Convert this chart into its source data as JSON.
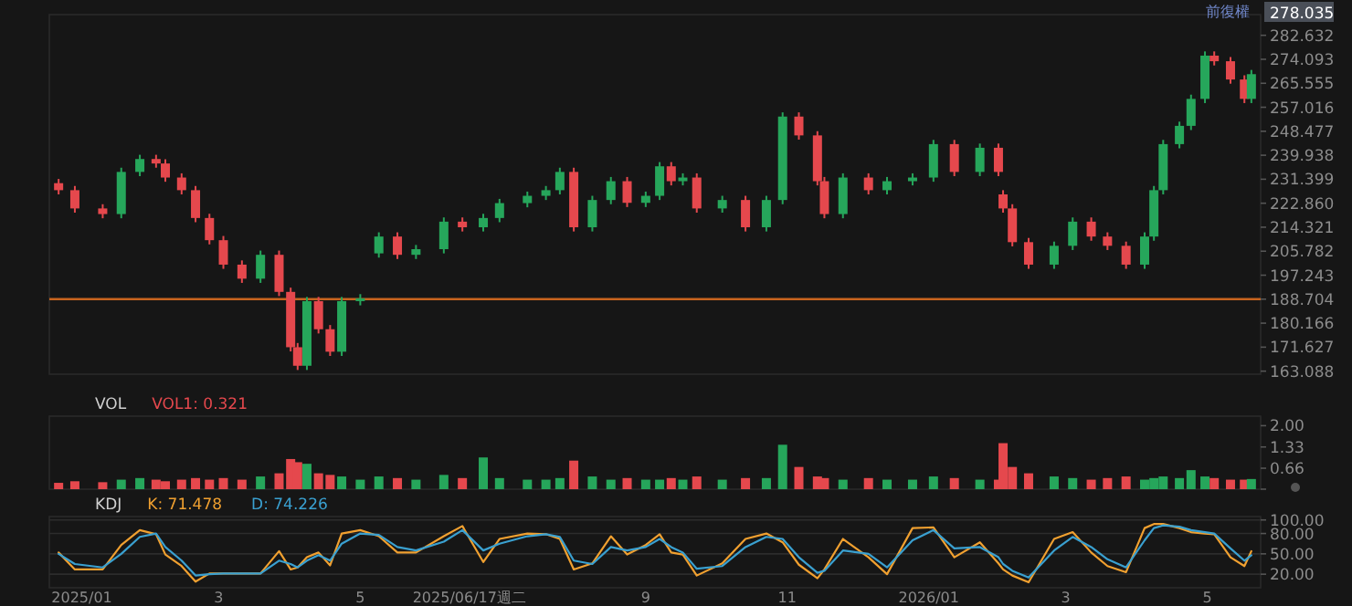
{
  "chart_data": [
    {
      "type": "candlestick",
      "x": [
        "2024-12-22",
        "2024-12-29",
        "2025-01-10",
        "2025-01-18",
        "2025-01-26",
        "2025-02-02",
        "2025-02-06",
        "2025-02-13",
        "2025-02-19",
        "2025-02-25",
        "2025-03-03",
        "2025-03-11",
        "2025-03-19",
        "2025-03-27",
        "2025-04-01",
        "2025-04-04",
        "2025-04-08",
        "2025-04-13",
        "2025-04-18",
        "2025-04-23",
        "2025-05-01",
        "2025-05-09",
        "2025-05-17",
        "2025-05-25",
        "2025-06-06",
        "2025-06-14",
        "2025-06-23",
        "2025-06-30",
        "2025-07-12",
        "2025-07-20",
        "2025-07-26",
        "2025-08-01",
        "2025-08-09",
        "2025-08-17",
        "2025-08-24",
        "2025-09-01",
        "2025-09-07",
        "2025-09-12",
        "2025-09-17",
        "2025-09-23",
        "2025-10-04",
        "2025-10-14",
        "2025-10-23",
        "2025-10-30",
        "2025-11-06",
        "2025-11-14",
        "2025-11-17",
        "2025-11-25",
        "2025-12-06",
        "2025-12-14",
        "2025-12-25",
        "2026-01-03",
        "2026-01-12",
        "2026-01-23",
        "2026-01-31",
        "2026-02-02",
        "2026-02-06",
        "2026-02-13",
        "2026-02-24",
        "2026-03-04",
        "2026-03-12",
        "2026-03-19",
        "2026-03-27",
        "2026-04-04",
        "2026-04-08",
        "2026-04-12",
        "2026-04-19",
        "2026-04-24",
        "2026-04-30",
        "2026-05-04",
        "2026-05-11",
        "2026-05-17",
        "2026-05-20"
      ],
      "ohlc": [
        [
          230,
          231.5,
          226,
          227.5
        ],
        [
          227.5,
          229,
          219.5,
          221
        ],
        [
          221,
          222.5,
          217.5,
          219
        ],
        [
          219,
          235.5,
          217.5,
          234
        ],
        [
          234,
          240.1,
          232.5,
          238.6
        ],
        [
          238.6,
          240.1,
          235.5,
          237
        ],
        [
          237,
          238.5,
          230.5,
          232
        ],
        [
          232,
          233.5,
          226,
          227.5
        ],
        [
          227.5,
          229,
          216.1,
          217.6
        ],
        [
          217.6,
          219.1,
          208.2,
          209.7
        ],
        [
          209.7,
          211.2,
          199.5,
          201
        ],
        [
          201,
          202.5,
          194.5,
          196
        ],
        [
          196,
          206,
          194.5,
          204.5
        ],
        [
          204.5,
          206,
          189.8,
          191.3
        ],
        [
          191.3,
          192.8,
          170.1,
          171.6
        ],
        [
          171.6,
          173.1,
          163.5,
          165
        ],
        [
          165,
          189.5,
          163.5,
          188
        ],
        [
          188,
          189.5,
          176.5,
          178
        ],
        [
          178,
          179.5,
          168.5,
          170
        ],
        [
          170,
          189.5,
          168.5,
          188
        ],
        [
          188,
          190.5,
          186.5,
          189
        ],
        [
          205,
          212.5,
          203.5,
          211
        ],
        [
          211,
          212.5,
          203,
          204.5
        ],
        [
          204.5,
          208,
          203,
          206.5
        ],
        [
          206.5,
          217.8,
          205,
          216.3
        ],
        [
          216.3,
          217.8,
          212.8,
          214.3
        ],
        [
          214.3,
          219.1,
          212.8,
          217.6
        ],
        [
          217.6,
          224.4,
          216.1,
          222.9
        ],
        [
          222.9,
          227,
          221.4,
          225.5
        ],
        [
          225.5,
          229,
          224,
          227.5
        ],
        [
          227.5,
          235.5,
          226,
          234
        ],
        [
          234,
          235.5,
          212.8,
          214.3
        ],
        [
          214.3,
          225.5,
          212.8,
          224
        ],
        [
          224,
          232.2,
          222.5,
          230.7
        ],
        [
          230.7,
          232.2,
          221.5,
          223
        ],
        [
          223,
          227,
          221.5,
          225.5
        ],
        [
          225.5,
          237.5,
          224,
          236
        ],
        [
          236,
          237.5,
          229.2,
          230.7
        ],
        [
          230.7,
          233.5,
          229.2,
          232
        ],
        [
          232,
          233.5,
          219.5,
          221
        ],
        [
          221,
          225.5,
          219.5,
          224
        ],
        [
          224,
          225.5,
          212.8,
          214.3
        ],
        [
          214.3,
          225.5,
          212.8,
          224
        ],
        [
          224,
          255.2,
          222.5,
          253.7
        ],
        [
          253.7,
          255.2,
          245.5,
          247
        ],
        [
          247,
          248.5,
          229.2,
          230.7
        ],
        [
          230.7,
          232.2,
          217.5,
          219
        ],
        [
          219,
          233.5,
          217.5,
          232
        ],
        [
          232,
          233.5,
          226,
          227.5
        ],
        [
          227.5,
          232.2,
          226,
          230.7
        ],
        [
          230.7,
          233.5,
          229.2,
          232
        ],
        [
          232,
          245.4,
          230.5,
          243.9
        ],
        [
          243.9,
          245.4,
          232.5,
          234
        ],
        [
          234,
          244.1,
          232.5,
          242.6
        ],
        [
          242.6,
          244.1,
          232.5,
          234
        ],
        [
          226,
          227.5,
          219.5,
          221
        ],
        [
          221,
          222.5,
          207.5,
          209
        ],
        [
          209,
          210.5,
          199.5,
          201
        ],
        [
          201,
          209.2,
          199.5,
          207.7
        ],
        [
          207.7,
          217.8,
          206.2,
          216.3
        ],
        [
          216.3,
          217.8,
          209.5,
          211
        ],
        [
          211,
          212.5,
          206.2,
          207.7
        ],
        [
          207.7,
          209.2,
          199.5,
          201
        ],
        [
          201,
          212.5,
          199.5,
          211
        ],
        [
          211,
          229,
          209.5,
          227.5
        ],
        [
          227.5,
          245.4,
          226,
          243.9
        ],
        [
          243.9,
          251.9,
          242.4,
          250.4
        ],
        [
          250.4,
          261.5,
          248.9,
          260
        ],
        [
          260,
          276.9,
          258.5,
          275.4
        ],
        [
          275.4,
          276.9,
          271.9,
          273.4
        ],
        [
          273.4,
          274.9,
          265.4,
          266.9
        ],
        [
          266.9,
          268.4,
          258.5,
          260
        ],
        [
          260,
          270.3,
          258.5,
          268.8
        ]
      ],
      "colors": [
        "#e5484d",
        "#e5484d",
        "#e5484d",
        "#26a65b",
        "#26a65b",
        "#e5484d",
        "#e5484d",
        "#e5484d",
        "#e5484d",
        "#e5484d",
        "#e5484d",
        "#e5484d",
        "#26a65b",
        "#e5484d",
        "#e5484d",
        "#e5484d",
        "#26a65b",
        "#e5484d",
        "#e5484d",
        "#26a65b",
        "#26a65b",
        "#26a65b",
        "#e5484d",
        "#26a65b",
        "#26a65b",
        "#e5484d",
        "#26a65b",
        "#26a65b",
        "#26a65b",
        "#26a65b",
        "#26a65b",
        "#e5484d",
        "#26a65b",
        "#26a65b",
        "#e5484d",
        "#26a65b",
        "#26a65b",
        "#e5484d",
        "#26a65b",
        "#e5484d",
        "#26a65b",
        "#e5484d",
        "#26a65b",
        "#26a65b",
        "#e5484d",
        "#e5484d",
        "#e5484d",
        "#26a65b",
        "#e5484d",
        "#26a65b",
        "#26a65b",
        "#26a65b",
        "#e5484d",
        "#26a65b",
        "#e5484d",
        "#e5484d",
        "#e5484d",
        "#e5484d",
        "#26a65b",
        "#26a65b",
        "#e5484d",
        "#e5484d",
        "#e5484d",
        "#26a65b",
        "#26a65b",
        "#26a65b",
        "#26a65b",
        "#26a65b",
        "#26a65b",
        "#e5484d",
        "#e5484d",
        "#e5484d",
        "#26a65b"
      ],
      "xlim": [
        "2024-12-18",
        "2026-05-24"
      ],
      "ylim": [
        162,
        290
      ],
      "yticks": [
        163.088,
        171.627,
        180.166,
        188.704,
        197.243,
        205.782,
        214.321,
        {
          "value": 222.86,
          "label": "222.860"
        },
        231.399,
        239.938,
        248.477,
        257.016,
        265.555,
        274.093,
        282.632
      ],
      "tick_labels": "y",
      "ref_lines": [
        {
          "axis": "y",
          "value": 188.704,
          "color": "#c8641e"
        }
      ],
      "annotations": [
        "前復權",
        "278.035"
      ]
    },
    {
      "type": "bar",
      "title": "VOL",
      "x": [
        "2024-12-22",
        "2024-12-29",
        "2025-01-10",
        "2025-01-18",
        "2025-01-26",
        "2025-02-02",
        "2025-02-06",
        "2025-02-13",
        "2025-02-19",
        "2025-02-25",
        "2025-03-03",
        "2025-03-11",
        "2025-03-19",
        "2025-03-27",
        "2025-04-01",
        "2025-04-04",
        "2025-04-08",
        "2025-04-13",
        "2025-04-18",
        "2025-04-23",
        "2025-05-01",
        "2025-05-09",
        "2025-05-17",
        "2025-05-25",
        "2025-06-06",
        "2025-06-14",
        "2025-06-23",
        "2025-06-30",
        "2025-07-12",
        "2025-07-20",
        "2025-07-26",
        "2025-08-01",
        "2025-08-09",
        "2025-08-17",
        "2025-08-24",
        "2025-09-01",
        "2025-09-07",
        "2025-09-12",
        "2025-09-17",
        "2025-09-23",
        "2025-10-04",
        "2025-10-14",
        "2025-10-23",
        "2025-10-30",
        "2025-11-06",
        "2025-11-14",
        "2025-11-17",
        "2025-11-25",
        "2025-12-06",
        "2025-12-14",
        "2025-12-25",
        "2026-01-03",
        "2026-01-12",
        "2026-01-23",
        "2026-01-31",
        "2026-02-02",
        "2026-02-06",
        "2026-02-13",
        "2026-02-24",
        "2026-03-04",
        "2026-03-12",
        "2026-03-19",
        "2026-03-27",
        "2026-04-04",
        "2026-04-08",
        "2026-04-12",
        "2026-04-19",
        "2026-04-24",
        "2026-04-30",
        "2026-05-04",
        "2026-05-11",
        "2026-05-17",
        "2026-05-20"
      ],
      "series": [
        {
          "name": "VOL1: 0.321",
          "color": "#e5484d",
          "values": [
            0.2,
            0.25,
            0.22,
            0.3,
            0.35,
            0.3,
            0.25,
            0.3,
            0.35,
            0.3,
            0.35,
            0.3,
            0.4,
            0.5,
            0.95,
            0.85,
            0.8,
            0.5,
            0.45,
            0.4,
            0.3,
            0.4,
            0.35,
            0.3,
            0.45,
            0.35,
            1.0,
            0.35,
            0.3,
            0.3,
            0.35,
            0.9,
            0.4,
            0.3,
            0.35,
            0.3,
            0.3,
            0.35,
            0.3,
            0.4,
            0.3,
            0.35,
            0.35,
            1.4,
            0.7,
            0.4,
            0.35,
            0.3,
            0.35,
            0.3,
            0.3,
            0.4,
            0.35,
            0.3,
            0.3,
            1.45,
            0.7,
            0.5,
            0.4,
            0.35,
            0.3,
            0.35,
            0.4,
            0.3,
            0.35,
            0.4,
            0.35,
            0.6,
            0.4,
            0.35,
            0.3,
            0.3,
            0.32
          ],
          "colors": [
            "#e5484d",
            "#e5484d",
            "#e5484d",
            "#26a65b",
            "#26a65b",
            "#e5484d",
            "#e5484d",
            "#e5484d",
            "#e5484d",
            "#e5484d",
            "#e5484d",
            "#e5484d",
            "#26a65b",
            "#e5484d",
            "#e5484d",
            "#e5484d",
            "#26a65b",
            "#e5484d",
            "#e5484d",
            "#26a65b",
            "#26a65b",
            "#26a65b",
            "#e5484d",
            "#26a65b",
            "#26a65b",
            "#e5484d",
            "#26a65b",
            "#26a65b",
            "#26a65b",
            "#26a65b",
            "#26a65b",
            "#e5484d",
            "#26a65b",
            "#26a65b",
            "#e5484d",
            "#26a65b",
            "#26a65b",
            "#e5484d",
            "#26a65b",
            "#e5484d",
            "#26a65b",
            "#e5484d",
            "#26a65b",
            "#26a65b",
            "#e5484d",
            "#e5484d",
            "#e5484d",
            "#26a65b",
            "#e5484d",
            "#26a65b",
            "#26a65b",
            "#26a65b",
            "#e5484d",
            "#26a65b",
            "#e5484d",
            "#e5484d",
            "#e5484d",
            "#e5484d",
            "#26a65b",
            "#26a65b",
            "#e5484d",
            "#e5484d",
            "#e5484d",
            "#26a65b",
            "#26a65b",
            "#26a65b",
            "#26a65b",
            "#26a65b",
            "#26a65b",
            "#e5484d",
            "#e5484d",
            "#e5484d",
            "#26a65b"
          ]
        }
      ],
      "xlim": [
        "2024-12-18",
        "2026-05-24"
      ],
      "ylim": [
        0,
        2.3
      ],
      "yticks": [
        {
          "value": 0,
          "label": null
        },
        0.66,
        1.33,
        {
          "value": 2,
          "label": "2.00"
        }
      ],
      "tick_labels": "y",
      "legend": "top left"
    },
    {
      "type": "line",
      "title": "KDJ",
      "x": [
        "2024-12-22",
        "2024-12-29",
        "2025-01-10",
        "2025-01-18",
        "2025-01-26",
        "2025-02-02",
        "2025-02-06",
        "2025-02-13",
        "2025-02-19",
        "2025-02-25",
        "2025-03-03",
        "2025-03-11",
        "2025-03-19",
        "2025-03-27",
        "2025-04-01",
        "2025-04-04",
        "2025-04-08",
        "2025-04-13",
        "2025-04-18",
        "2025-04-23",
        "2025-05-01",
        "2025-05-09",
        "2025-05-17",
        "2025-05-25",
        "2025-06-06",
        "2025-06-14",
        "2025-06-23",
        "2025-06-30",
        "2025-07-12",
        "2025-07-20",
        "2025-07-26",
        "2025-08-01",
        "2025-08-09",
        "2025-08-17",
        "2025-08-24",
        "2025-09-01",
        "2025-09-07",
        "2025-09-12",
        "2025-09-17",
        "2025-09-23",
        "2025-10-04",
        "2025-10-14",
        "2025-10-23",
        "2025-10-30",
        "2025-11-06",
        "2025-11-14",
        "2025-11-17",
        "2025-11-25",
        "2025-12-06",
        "2025-12-14",
        "2025-12-25",
        "2026-01-03",
        "2026-01-12",
        "2026-01-23",
        "2026-01-31",
        "2026-02-02",
        "2026-02-06",
        "2026-02-13",
        "2026-02-24",
        "2026-03-04",
        "2026-03-12",
        "2026-03-19",
        "2026-03-27",
        "2026-04-04",
        "2026-04-08",
        "2026-04-12",
        "2026-04-19",
        "2026-04-24",
        "2026-04-30",
        "2026-05-04",
        "2026-05-11",
        "2026-05-17",
        "2026-05-20"
      ],
      "series": [
        {
          "name": "K: 71.478",
          "color": "#f0a030",
          "values": [
            52,
            27,
            27,
            63,
            85,
            79,
            49,
            32,
            9,
            21,
            21,
            21,
            21,
            54,
            27,
            30,
            45,
            52,
            33,
            80,
            85,
            76,
            52,
            52,
            76,
            91,
            38,
            72,
            80,
            79,
            72,
            27,
            36,
            76,
            49,
            63,
            79,
            52,
            49,
            18,
            36,
            72,
            80,
            67,
            34,
            14,
            27,
            72,
            45,
            20,
            88,
            89,
            45,
            67,
            36,
            27,
            18,
            8,
            72,
            82,
            52,
            32,
            23,
            88,
            94,
            94,
            88,
            82,
            80,
            79,
            45,
            32,
            54
          ]
        },
        {
          "name": "D: 74.226",
          "color": "#3aa0d0",
          "values": [
            50,
            35,
            30,
            50,
            75,
            80,
            60,
            40,
            18,
            20,
            21,
            21,
            21,
            40,
            35,
            30,
            40,
            48,
            40,
            65,
            80,
            78,
            60,
            55,
            68,
            85,
            55,
            65,
            76,
            79,
            75,
            40,
            35,
            60,
            55,
            60,
            72,
            60,
            52,
            28,
            32,
            60,
            75,
            72,
            45,
            22,
            25,
            55,
            50,
            30,
            70,
            85,
            58,
            60,
            45,
            35,
            25,
            15,
            55,
            75,
            60,
            42,
            30,
            70,
            88,
            92,
            90,
            85,
            82,
            80,
            58,
            40,
            48
          ]
        }
      ],
      "xlim": [
        "2024-12-18",
        "2026-05-24"
      ],
      "ylim": [
        0,
        105
      ],
      "xticks": [
        {
          "value": "2025-01-01",
          "label": "2025/01"
        },
        {
          "value": "2025-03-01",
          "label": "3"
        },
        {
          "value": "2025-05-01",
          "label": "5"
        },
        {
          "value": "2025-06-17",
          "label": "2025/06/17週二"
        },
        {
          "value": "2025-09-01",
          "label": "9"
        },
        {
          "value": "2025-11-01",
          "label": "11"
        },
        {
          "value": "2026-01-01",
          "label": "2026/01"
        },
        {
          "value": "2026-03-01",
          "label": "3"
        },
        {
          "value": "2026-05-01",
          "label": "5"
        }
      ],
      "yticks": [
        {
          "value": 20,
          "label": "20.00"
        },
        {
          "value": 50,
          "label": "50.00"
        },
        {
          "value": 80,
          "label": "80.00"
        },
        {
          "value": 100,
          "label": "100.00"
        }
      ],
      "grid": "y",
      "legend": "top left"
    }
  ]
}
